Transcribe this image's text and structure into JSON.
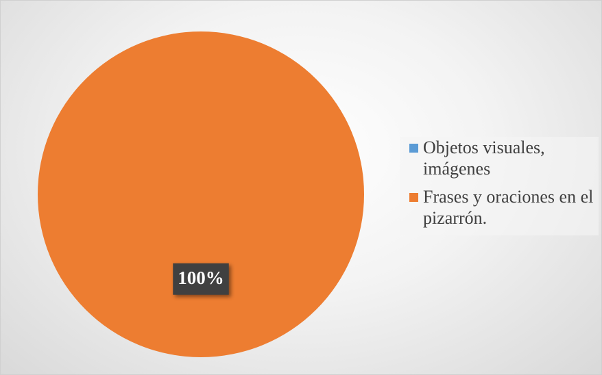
{
  "chart_data": {
    "type": "pie",
    "categories": [
      "Objetos visuales, imágenes",
      "Frases y oraciones en el pizarrón."
    ],
    "values": [
      0,
      100
    ],
    "value_labels": [
      null,
      "100%"
    ],
    "colors": [
      "#5b9bd5",
      "#ed7d31"
    ],
    "legend": "right"
  }
}
